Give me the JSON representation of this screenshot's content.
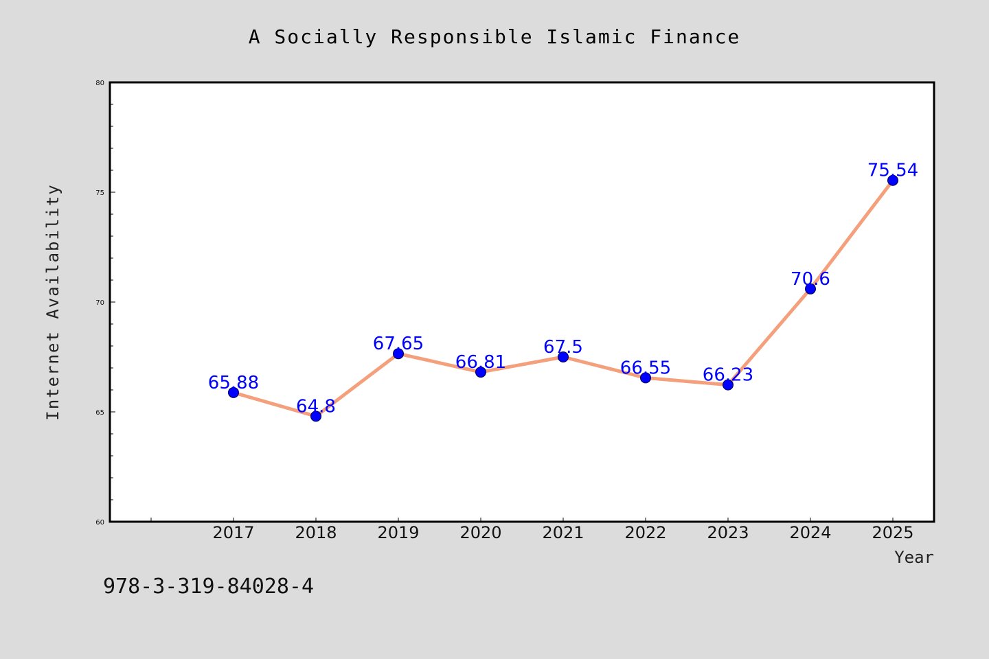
{
  "chart_data": {
    "type": "line",
    "title": "A Socially Responsible Islamic Finance",
    "xlabel": "Year",
    "ylabel": "Internet Availability",
    "categories": [
      "2017",
      "2018",
      "2019",
      "2020",
      "2021",
      "2022",
      "2023",
      "2024",
      "2025"
    ],
    "values": [
      65.88,
      64.8,
      67.65,
      66.81,
      67.5,
      66.55,
      66.23,
      70.6,
      75.54
    ],
    "data_labels": [
      "65.88",
      "64.8",
      "67.65",
      "66.81",
      "67.5",
      "66.55",
      "66.23",
      "70.6",
      "75.54"
    ],
    "ylim": [
      60,
      80
    ],
    "yticks": [
      "60",
      "65",
      "70",
      "75",
      "80"
    ],
    "grid": false,
    "colors": {
      "line": "#f4a07c",
      "marker": "#0000ff",
      "data_label": "#0000ff",
      "plot_background": "#ffffff",
      "figure_background": "#dcdcdc"
    }
  },
  "footnote": "978-3-319-84028-4"
}
